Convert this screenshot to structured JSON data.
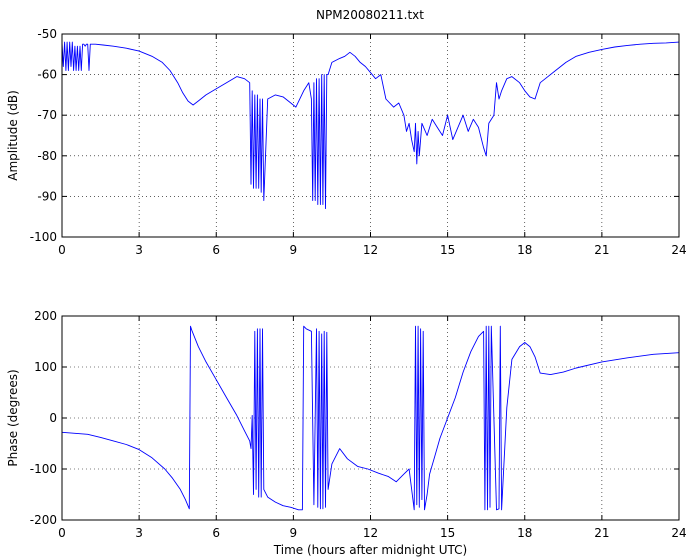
{
  "figure": {
    "title": "NPM20080211.txt",
    "colors": {
      "series": "#0000ff",
      "axes": "#000000",
      "grid": "#000000",
      "background": "#ffffff"
    }
  },
  "chart_data": [
    {
      "type": "line",
      "title": "NPM20080211.txt",
      "xlabel": "",
      "ylabel": "Amplitude (dB)",
      "xlim": [
        0,
        24
      ],
      "ylim": [
        -100,
        -50
      ],
      "xticks": [
        0,
        3,
        6,
        9,
        12,
        15,
        18,
        21,
        24
      ],
      "yticks": [
        -100,
        -90,
        -80,
        -70,
        -60,
        -50
      ],
      "grid": true,
      "series": [
        {
          "x": [
            0,
            0.05,
            0.1,
            0.15,
            0.2,
            0.25,
            0.3,
            0.35,
            0.4,
            0.45,
            0.5,
            0.55,
            0.6,
            0.65,
            0.7,
            0.75,
            0.8,
            0.85,
            0.9,
            0.95,
            1.0,
            1.05,
            1.1,
            1.15,
            1.3,
            1.6,
            2.0,
            2.5,
            3.0,
            3.5,
            3.9,
            4.2,
            4.5,
            4.7,
            4.9,
            5.0,
            5.1,
            5.3,
            5.6,
            6.0,
            6.4,
            6.8,
            7.1,
            7.3,
            7.35,
            7.4,
            7.45,
            7.5,
            7.55,
            7.6,
            7.65,
            7.7,
            7.75,
            7.8,
            7.85,
            8.0,
            8.3,
            8.6,
            8.9,
            9.1,
            9.4,
            9.6,
            9.7,
            9.75,
            9.8,
            9.85,
            9.9,
            9.95,
            10.0,
            10.05,
            10.1,
            10.15,
            10.2,
            10.25,
            10.3,
            10.35,
            10.5,
            10.8,
            11.0,
            11.2,
            11.4,
            11.6,
            11.8,
            12.0,
            12.2,
            12.4,
            12.6,
            12.9,
            13.1,
            13.3,
            13.4,
            13.5,
            13.6,
            13.7,
            13.75,
            13.8,
            13.85,
            13.9,
            14.0,
            14.2,
            14.4,
            14.6,
            14.8,
            15.0,
            15.2,
            15.4,
            15.6,
            15.8,
            16.0,
            16.2,
            16.4,
            16.5,
            16.6,
            16.8,
            16.9,
            17.0,
            17.1,
            17.3,
            17.5,
            17.8,
            18.0,
            18.2,
            18.4,
            18.6,
            18.8,
            19.2,
            19.6,
            20.0,
            20.5,
            21.0,
            21.5,
            22.0,
            22.5,
            23.0,
            23.5,
            24.0
          ],
          "y": [
            -52,
            -58,
            -52,
            -59,
            -52,
            -59,
            -52,
            -58,
            -52,
            -59,
            -53,
            -59,
            -53,
            -59,
            -53,
            -59,
            -52.5,
            -52.5,
            -53,
            -52.5,
            -52.5,
            -59,
            -52.5,
            -52.5,
            -52.5,
            -52.7,
            -53.0,
            -53.5,
            -54.2,
            -55.5,
            -57,
            -59,
            -62,
            -64.5,
            -66.5,
            -67,
            -67.5,
            -66.5,
            -65,
            -63.5,
            -62,
            -60.5,
            -61,
            -62,
            -87,
            -64,
            -88,
            -65,
            -88,
            -65,
            -88,
            -66,
            -89,
            -66,
            -91,
            -66,
            -65,
            -65.5,
            -67,
            -68,
            -64,
            -62,
            -66,
            -91,
            -62,
            -91,
            -61,
            -92,
            -61,
            -92,
            -60,
            -92,
            -60,
            -93,
            -60,
            -60,
            -57,
            -56,
            -55.5,
            -54.5,
            -55.5,
            -57,
            -58,
            -59.5,
            -61,
            -60,
            -66,
            -68,
            -67,
            -70,
            -74,
            -72,
            -76,
            -79,
            -72,
            -82,
            -74,
            -80,
            -72,
            -75,
            -71,
            -73,
            -75,
            -70,
            -76,
            -73,
            -70,
            -74,
            -71,
            -73,
            -78,
            -80,
            -72,
            -70,
            -62,
            -66,
            -64,
            -61,
            -60.5,
            -62,
            -64,
            -65.5,
            -66,
            -62,
            -61,
            -59,
            -57,
            -55.5,
            -54.5,
            -53.8,
            -53.2,
            -52.8,
            -52.5,
            -52.3,
            -52.2,
            -52.0
          ]
        }
      ]
    },
    {
      "type": "line",
      "title": "",
      "xlabel": "Time (hours after midnight UTC)",
      "ylabel": "Phase (degrees)",
      "xlim": [
        0,
        24
      ],
      "ylim": [
        -200,
        200
      ],
      "xticks": [
        0,
        3,
        6,
        9,
        12,
        15,
        18,
        21,
        24
      ],
      "yticks": [
        -200,
        -100,
        0,
        100,
        200
      ],
      "grid": true,
      "series": [
        {
          "x": [
            0,
            0.5,
            1.0,
            1.5,
            2.0,
            2.5,
            3.0,
            3.5,
            4.0,
            4.3,
            4.6,
            4.8,
            4.95,
            5.0,
            5.05,
            5.3,
            5.6,
            6.0,
            6.4,
            6.8,
            7.1,
            7.3,
            7.35,
            7.4,
            7.45,
            7.5,
            7.55,
            7.6,
            7.65,
            7.7,
            7.75,
            7.8,
            7.85,
            8.0,
            8.3,
            8.6,
            8.9,
            9.2,
            9.35,
            9.4,
            9.5,
            9.7,
            9.8,
            9.9,
            9.95,
            10.0,
            10.05,
            10.1,
            10.15,
            10.2,
            10.25,
            10.3,
            10.35,
            10.5,
            10.8,
            11.1,
            11.5,
            11.9,
            12.3,
            12.7,
            13.0,
            13.3,
            13.5,
            13.7,
            13.75,
            13.8,
            13.85,
            13.9,
            13.95,
            14.0,
            14.05,
            14.1,
            14.2,
            14.3,
            14.5,
            14.7,
            15.0,
            15.3,
            15.6,
            15.9,
            16.2,
            16.4,
            16.45,
            16.5,
            16.55,
            16.6,
            16.65,
            16.7,
            16.9,
            17.0,
            17.05,
            17.1,
            17.3,
            17.5,
            17.8,
            18.0,
            18.2,
            18.4,
            18.6,
            19.0,
            19.5,
            20.0,
            21.0,
            22.0,
            23.0,
            24.0
          ],
          "y": [
            -28,
            -30,
            -32,
            -38,
            -45,
            -52,
            -62,
            -78,
            -100,
            -118,
            -140,
            -160,
            -178,
            180,
            172,
            140,
            110,
            75,
            40,
            5,
            -25,
            -45,
            -60,
            5,
            -150,
            170,
            -140,
            175,
            -155,
            175,
            -155,
            175,
            -140,
            -155,
            -165,
            -172,
            -175,
            -180,
            -180,
            180,
            175,
            170,
            -170,
            175,
            -175,
            170,
            -178,
            165,
            -178,
            170,
            -175,
            168,
            -140,
            -90,
            -60,
            -80,
            -95,
            -100,
            -108,
            -115,
            -125,
            -110,
            -100,
            -180,
            180,
            -170,
            180,
            -175,
            175,
            -160,
            170,
            -180,
            -150,
            -110,
            -75,
            -40,
            0,
            40,
            90,
            130,
            160,
            170,
            -180,
            180,
            -180,
            180,
            -175,
            180,
            -180,
            -178,
            180,
            -180,
            20,
            115,
            140,
            148,
            140,
            120,
            88,
            85,
            90,
            98,
            110,
            118,
            125,
            128
          ]
        }
      ]
    }
  ]
}
